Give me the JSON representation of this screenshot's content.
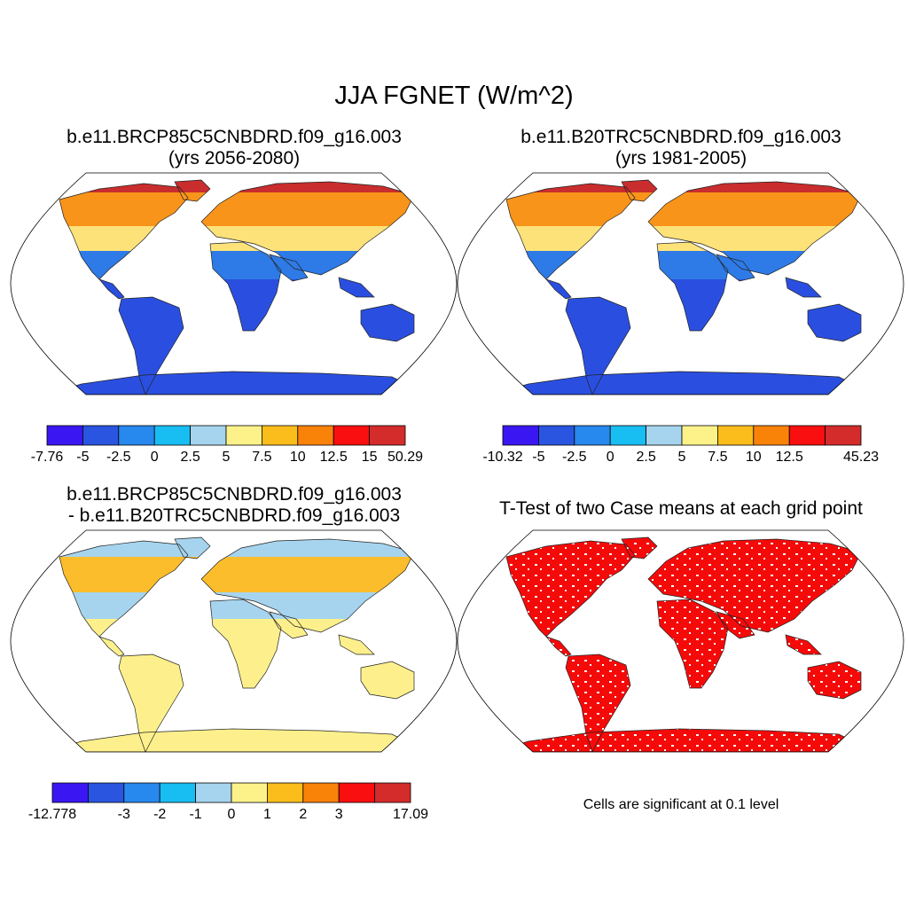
{
  "figure": {
    "title": "JJA FGNET (W/m^2)"
  },
  "panels": [
    {
      "title_line1": "b.e11.BRCP85C5CNBDRD.f09_g16.003",
      "title_line2": "(yrs 2056-2080)"
    },
    {
      "title_line1": "b.e11.B20TRC5CNBDRD.f09_g16.003",
      "title_line2": "(yrs 1981-2005)"
    },
    {
      "title_line1": "b.e11.BRCP85C5CNBDRD.f09_g16.003",
      "title_line2": "- b.e11.B20TRC5CNBDRD.f09_g16.003"
    },
    {
      "title_line1": "T-Test of two Case means at each grid point",
      "note": "Cells are significant at 0.1 level"
    }
  ],
  "colorbars": [
    {
      "colors": [
        "#3a17f2",
        "#2a55e0",
        "#2788ee",
        "#18bdf2",
        "#a6d4ee",
        "#fdf28a",
        "#fbbd1b",
        "#f98209",
        "#f90f0f",
        "#d42b2b"
      ],
      "ticks": [
        "-7.76",
        "-5",
        "-2.5",
        "0",
        "2.5",
        "5",
        "7.5",
        "10",
        "12.5",
        "15",
        "50.29"
      ]
    },
    {
      "colors": [
        "#3a17f2",
        "#2a55e0",
        "#2788ee",
        "#18bdf2",
        "#a6d4ee",
        "#fdf28a",
        "#fbbd1b",
        "#f98209",
        "#f90f0f",
        "#d42b2b"
      ],
      "ticks": [
        "-10.32",
        "-5",
        "-2.5",
        "0",
        "2.5",
        "5",
        "7.5",
        "10",
        "12.5",
        "",
        "45.23"
      ]
    },
    {
      "colors": [
        "#3a17f2",
        "#2a55e0",
        "#2788ee",
        "#18bdf2",
        "#a6d4ee",
        "#fdf28a",
        "#fbbd1b",
        "#f98209",
        "#f90f0f",
        "#d42b2b"
      ],
      "ticks": [
        "-12.778",
        "",
        "-3",
        "-2",
        "-1",
        "0",
        "1",
        "2",
        "3",
        "",
        "17.09"
      ]
    }
  ],
  "map_fills": {
    "ocean": "#ffffff",
    "current_north": "#f9941a",
    "current_mid": "#fde27a",
    "current_tropic": "#2e7ae6",
    "current_south": "#2a4fe0",
    "arctic_hot": "#c92d2d",
    "diff_land": "#fdf08c",
    "diff_warm": "#fbbd2b",
    "diff_cool": "#a6d4ee",
    "ttest_sig": "#f50a0a"
  }
}
